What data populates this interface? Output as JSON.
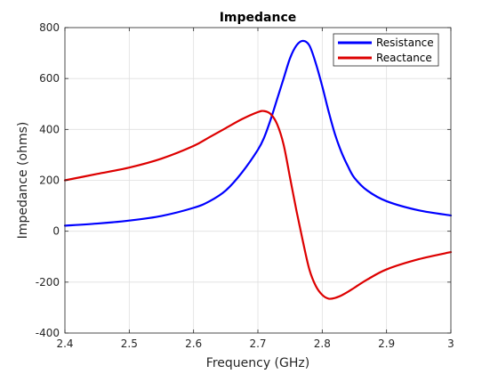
{
  "chart_data": {
    "type": "line",
    "title": "Impedance",
    "xlabel": "Frequency (GHz)",
    "ylabel": "Impedance (ohms)",
    "xlim": [
      2.4,
      3.0
    ],
    "ylim": [
      -400,
      800
    ],
    "xticks": [
      "2.4",
      "2.5",
      "2.6",
      "2.7",
      "2.8",
      "2.9",
      "3"
    ],
    "yticks": [
      "-400",
      "-200",
      "0",
      "200",
      "400",
      "600",
      "800"
    ],
    "grid": true,
    "legend": "top-right",
    "x": [
      2.4,
      2.45,
      2.5,
      2.55,
      2.6,
      2.625,
      2.65,
      2.675,
      2.7,
      2.71,
      2.72,
      2.73,
      2.74,
      2.75,
      2.76,
      2.77,
      2.78,
      2.79,
      2.8,
      2.81,
      2.82,
      2.83,
      2.84,
      2.85,
      2.87,
      2.9,
      2.95,
      3.0
    ],
    "series": [
      {
        "name": "Resistance",
        "color": "#0000ff",
        "values": [
          22,
          30,
          42,
          60,
          92,
          118,
          160,
          230,
          320,
          370,
          440,
          520,
          600,
          680,
          730,
          748,
          730,
          660,
          570,
          470,
          380,
          310,
          255,
          210,
          160,
          118,
          82,
          62
        ]
      },
      {
        "name": "Reactance",
        "color": "#dd0000",
        "values": [
          200,
          225,
          250,
          285,
          335,
          370,
          405,
          440,
          468,
          472,
          460,
          420,
          340,
          210,
          80,
          -40,
          -150,
          -215,
          -250,
          -265,
          -262,
          -252,
          -238,
          -222,
          -190,
          -150,
          -110,
          -82
        ]
      }
    ]
  }
}
